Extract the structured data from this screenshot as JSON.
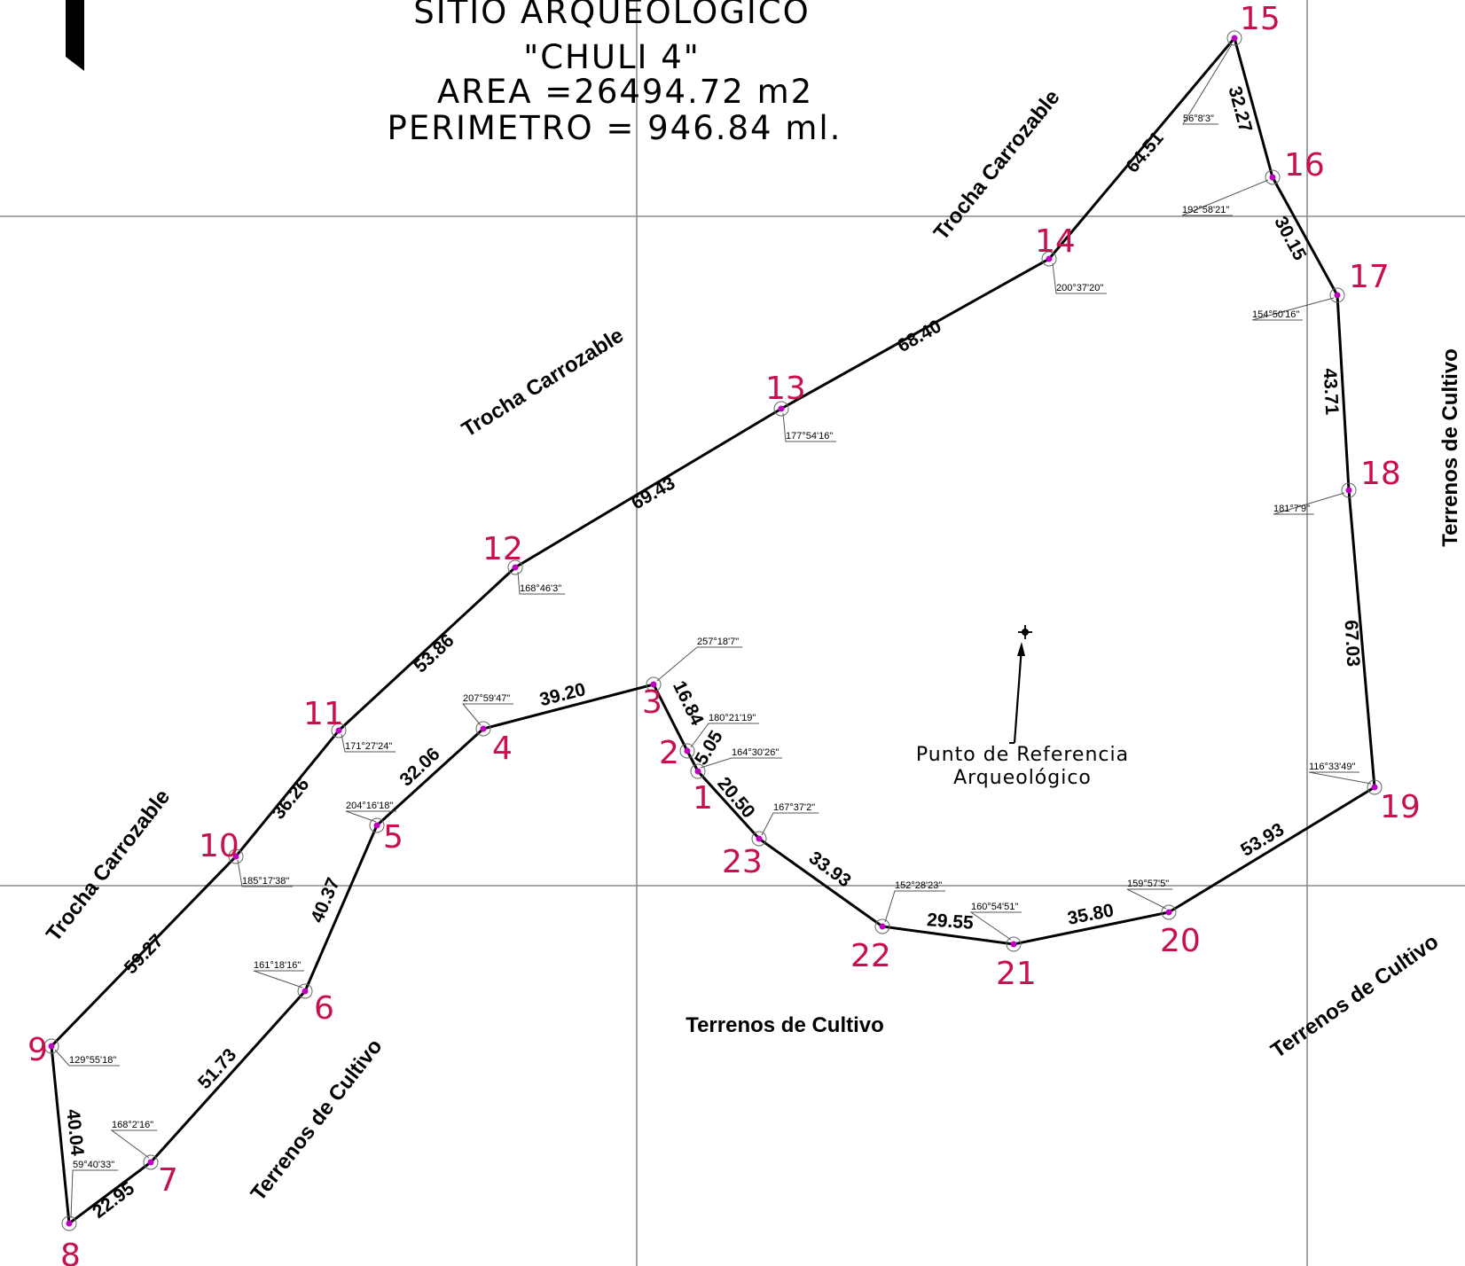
{
  "title": {
    "line1": "SITIO ARQUEOLOGICO",
    "line2": "\"CHULI 4\"",
    "area": "AREA =26494.72   m2",
    "perimeter": "PERIMETRO = 946.84 ml."
  },
  "reference_point": {
    "line1": "Punto de Referencia",
    "line2": "Arqueológico"
  },
  "context_labels": [
    "Trocha Carrozable",
    "Trocha Carrozable",
    "Trocha Carrozable",
    "Terrenos de Cultivo",
    "Terrenos de Cultivo",
    "Terrenos de Cultivo",
    "Terrenos de Cultivo"
  ],
  "vertices": [
    {
      "id": "1",
      "angle": "164°30'26\""
    },
    {
      "id": "2",
      "angle": "180°21'19\""
    },
    {
      "id": "3",
      "angle": "257°18'7\""
    },
    {
      "id": "4",
      "angle": "207°59'47\""
    },
    {
      "id": "5",
      "angle": "204°16'18\""
    },
    {
      "id": "6",
      "angle": "161°18'16\""
    },
    {
      "id": "7",
      "angle": "168°2'16\""
    },
    {
      "id": "8",
      "angle": "59°40'33\""
    },
    {
      "id": "9",
      "angle": "129°55'18\""
    },
    {
      "id": "10",
      "angle": "185°17'38\""
    },
    {
      "id": "11",
      "angle": "171°27'24\""
    },
    {
      "id": "12",
      "angle": "168°46'3\""
    },
    {
      "id": "13",
      "angle": "177°54'16\""
    },
    {
      "id": "14",
      "angle": "200°37'20\""
    },
    {
      "id": "15",
      "angle": "56°8'3\""
    },
    {
      "id": "16",
      "angle": "192°58'21\""
    },
    {
      "id": "17",
      "angle": "154°50'16\""
    },
    {
      "id": "18",
      "angle": "181°7'9\""
    },
    {
      "id": "19",
      "angle": "116°33'49\""
    },
    {
      "id": "20",
      "angle": "159°57'5\""
    },
    {
      "id": "21",
      "angle": "160°54'51\""
    },
    {
      "id": "22",
      "angle": "152°28'23\""
    },
    {
      "id": "23",
      "angle": "167°37'2\""
    }
  ],
  "sides": [
    {
      "from": "1",
      "to": "2",
      "length": "5.05"
    },
    {
      "from": "2",
      "to": "3",
      "length": "16.84"
    },
    {
      "from": "3",
      "to": "4",
      "length": "39.20"
    },
    {
      "from": "4",
      "to": "5",
      "length": "32.06"
    },
    {
      "from": "5",
      "to": "6",
      "length": "40.37"
    },
    {
      "from": "6",
      "to": "7",
      "length": "51.73"
    },
    {
      "from": "7",
      "to": "8",
      "length": "22.95"
    },
    {
      "from": "8",
      "to": "9",
      "length": "40.04"
    },
    {
      "from": "9",
      "to": "10",
      "length": "59.27"
    },
    {
      "from": "10",
      "to": "11",
      "length": "36.26"
    },
    {
      "from": "11",
      "to": "12",
      "length": "53.86"
    },
    {
      "from": "12",
      "to": "13",
      "length": "69.43"
    },
    {
      "from": "13",
      "to": "14",
      "length": "68.40"
    },
    {
      "from": "14",
      "to": "15",
      "length": "64.51"
    },
    {
      "from": "15",
      "to": "16",
      "length": "32.27"
    },
    {
      "from": "16",
      "to": "17",
      "length": "30.15"
    },
    {
      "from": "17",
      "to": "18",
      "length": "43.71"
    },
    {
      "from": "18",
      "to": "19",
      "length": "67.03"
    },
    {
      "from": "19",
      "to": "20",
      "length": "53.93"
    },
    {
      "from": "20",
      "to": "21",
      "length": "35.80"
    },
    {
      "from": "21",
      "to": "22",
      "length": "29.55"
    },
    {
      "from": "22",
      "to": "23",
      "length": "33.93"
    },
    {
      "from": "23",
      "to": "1",
      "length": "20.50"
    }
  ]
}
